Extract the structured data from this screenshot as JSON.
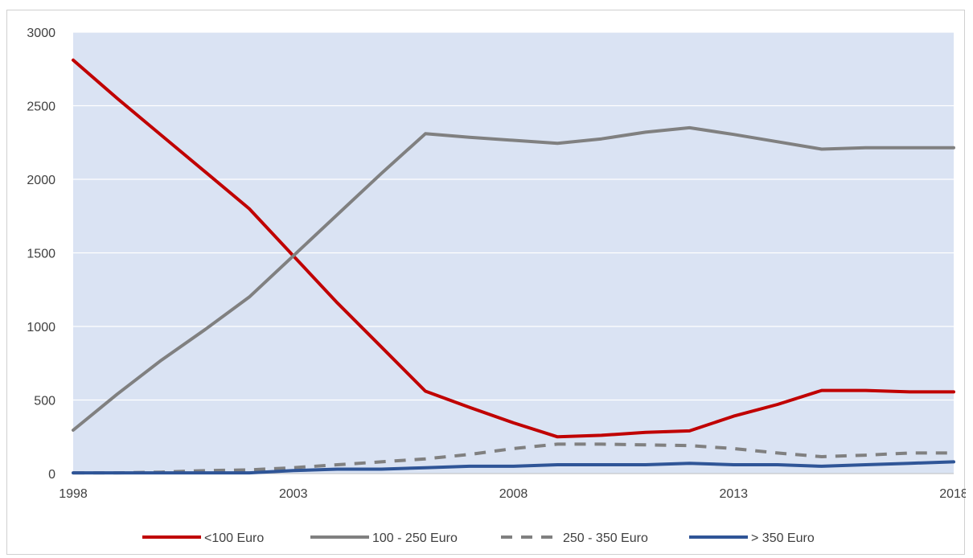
{
  "chart_data": {
    "type": "line",
    "title": "",
    "xlabel": "",
    "ylabel": "",
    "xlim": [
      1998,
      2018
    ],
    "ylim": [
      0,
      3000
    ],
    "x_ticks": [
      "1998",
      "2003",
      "2008",
      "2013",
      "2018"
    ],
    "y_ticks": [
      "0",
      "500",
      "1000",
      "1500",
      "2000",
      "2500",
      "3000"
    ],
    "grid": "horizontal",
    "legend_position": "bottom",
    "plot_background": "#dae3f3",
    "series": [
      {
        "name": "<100 Euro",
        "color": "#c00000",
        "dash": "solid",
        "x": [
          1998,
          1999,
          2000,
          2001,
          2002,
          2003,
          2004,
          2005,
          2006,
          2007,
          2008,
          2009,
          2010,
          2011,
          2012,
          2013,
          2014,
          2015,
          2016,
          2017,
          2018
        ],
        "y": [
          2810,
          2550,
          2300,
          2050,
          1800,
          1480,
          1160,
          860,
          560,
          450,
          345,
          250,
          260,
          280,
          290,
          390,
          470,
          565,
          565,
          555,
          555
        ]
      },
      {
        "name": "100 - 250 Euro",
        "color": "#808080",
        "dash": "solid",
        "x": [
          1998,
          1999,
          2000,
          2001,
          2002,
          2003,
          2004,
          2005,
          2006,
          2007,
          2008,
          2009,
          2010,
          2011,
          2012,
          2013,
          2014,
          2015,
          2016,
          2017,
          2018
        ],
        "y": [
          295,
          540,
          770,
          980,
          1200,
          1480,
          1760,
          2040,
          2310,
          2285,
          2265,
          2245,
          2275,
          2320,
          2350,
          2305,
          2255,
          2205,
          2215,
          2215,
          2215
        ]
      },
      {
        "name": "250 - 350 Euro",
        "color": "#808080",
        "dash": "dashed",
        "x": [
          1998,
          1999,
          2000,
          2001,
          2002,
          2003,
          2004,
          2005,
          2006,
          2007,
          2008,
          2009,
          2010,
          2011,
          2012,
          2013,
          2014,
          2015,
          2016,
          2017,
          2018
        ],
        "y": [
          5,
          5,
          10,
          20,
          25,
          40,
          60,
          80,
          100,
          130,
          170,
          200,
          200,
          195,
          190,
          170,
          140,
          115,
          125,
          140,
          140
        ]
      },
      {
        "name": "> 350 Euro",
        "color": "#2f5597",
        "dash": "solid",
        "x": [
          1998,
          1999,
          2000,
          2001,
          2002,
          2003,
          2004,
          2005,
          2006,
          2007,
          2008,
          2009,
          2010,
          2011,
          2012,
          2013,
          2014,
          2015,
          2016,
          2017,
          2018
        ],
        "y": [
          5,
          5,
          5,
          5,
          5,
          20,
          30,
          30,
          40,
          50,
          50,
          60,
          60,
          60,
          70,
          60,
          60,
          50,
          60,
          70,
          80
        ]
      }
    ]
  }
}
